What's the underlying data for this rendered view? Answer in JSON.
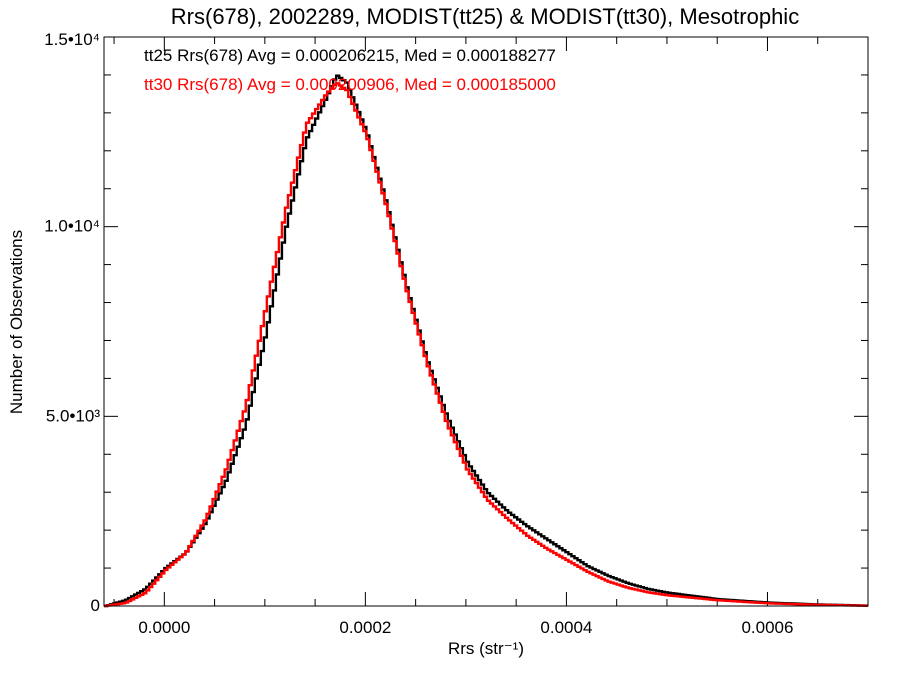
{
  "chart_data": {
    "type": "line",
    "title": "Rrs(678), 2002289, MODIST(tt25) & MODIST(tt30), Mesotrophic",
    "xlabel": "Rrs (str⁻¹)",
    "ylabel": "Number of Observations",
    "xlim": [
      -6e-05,
      0.0007
    ],
    "ylim": [
      0,
      15000
    ],
    "x_ticks": [
      {
        "value": 0.0,
        "label": "0.0000"
      },
      {
        "value": 0.0002,
        "label": "0.0002"
      },
      {
        "value": 0.0004,
        "label": "0.0004"
      },
      {
        "value": 0.0006,
        "label": "0.0006"
      }
    ],
    "y_ticks": [
      {
        "value": 0,
        "label": "0"
      },
      {
        "value": 5000,
        "label": "5.0•10³"
      },
      {
        "value": 10000,
        "label": "1.0•10⁴"
      },
      {
        "value": 15000,
        "label": "1.5•10⁴"
      }
    ],
    "annotations": [
      {
        "text": "tt25 Rrs(678) Avg = 0.000206215, Med = 0.000188277",
        "color": "#000000"
      },
      {
        "text": "tt30 Rrs(678) Avg = 0.000200906, Med = 0.000185000",
        "color": "#ff0000"
      }
    ],
    "x": [
      -6e-05,
      -4e-05,
      -2e-05,
      0.0,
      2e-05,
      4e-05,
      6e-05,
      8e-05,
      0.0001,
      0.00012,
      0.00014,
      0.00016,
      0.00017,
      0.00018,
      0.0002,
      0.00022,
      0.00024,
      0.00026,
      0.00028,
      0.0003,
      0.00032,
      0.00034,
      0.00036,
      0.00038,
      0.0004,
      0.00042,
      0.00044,
      0.00046,
      0.00048,
      0.0005,
      0.00055,
      0.0006,
      0.00065,
      0.0007
    ],
    "series": [
      {
        "name": "tt25",
        "color": "#000000",
        "values": [
          0,
          150,
          450,
          1000,
          1400,
          2200,
          3300,
          4800,
          7200,
          10000,
          12300,
          13400,
          14000,
          13800,
          12500,
          10600,
          8400,
          6500,
          5000,
          3800,
          3000,
          2500,
          2100,
          1750,
          1400,
          1050,
          800,
          600,
          450,
          350,
          180,
          90,
          40,
          10
        ]
      },
      {
        "name": "tt30",
        "color": "#ff0000",
        "values": [
          0,
          80,
          350,
          950,
          1400,
          2300,
          3600,
          5300,
          7900,
          10500,
          12700,
          13500,
          13800,
          13600,
          12400,
          10500,
          8300,
          6400,
          4800,
          3600,
          2800,
          2300,
          1850,
          1500,
          1200,
          900,
          650,
          480,
          360,
          280,
          150,
          70,
          30,
          5
        ]
      }
    ]
  }
}
